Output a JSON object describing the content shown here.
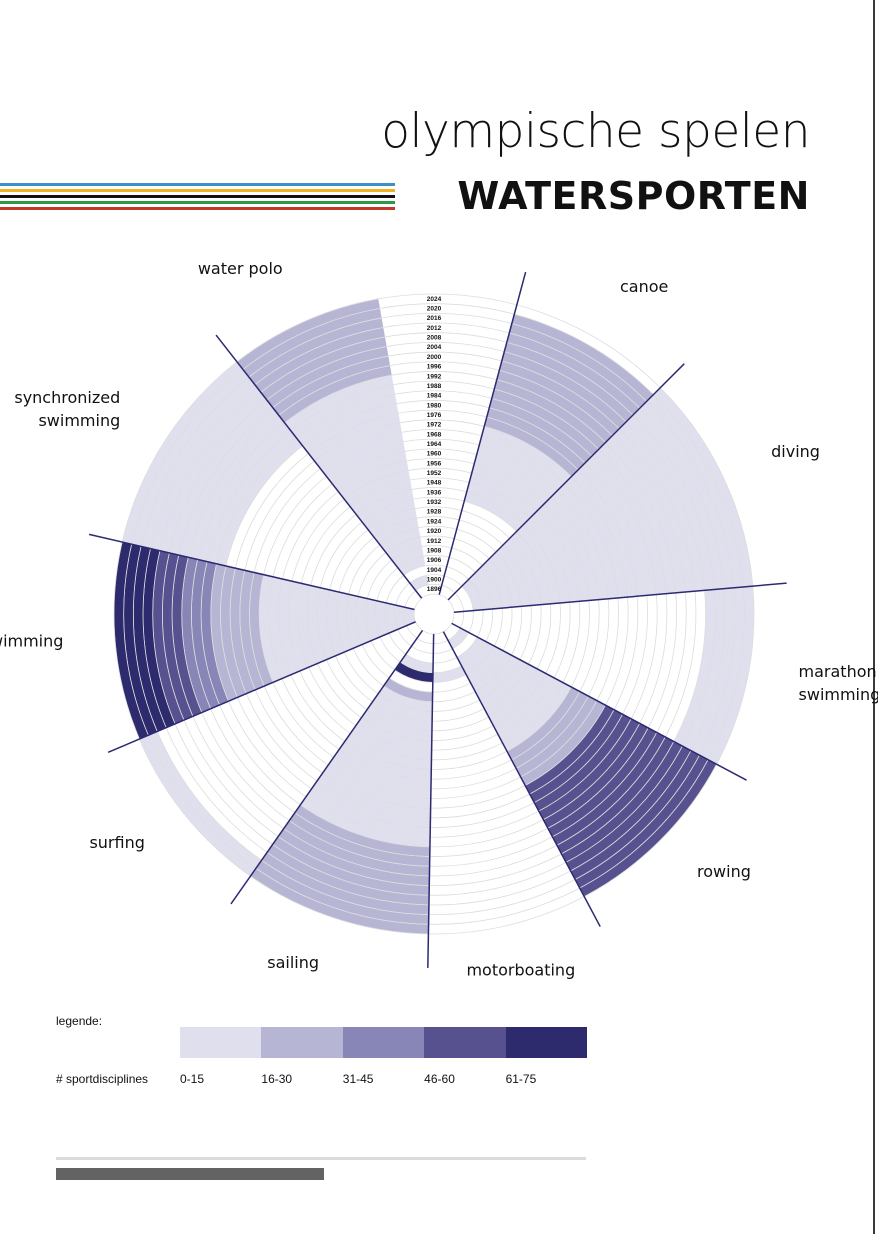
{
  "page": {
    "title": "olympische spelen",
    "subtitle": "WATERSPORTEN"
  },
  "ring_colors": [
    {
      "name": "blue",
      "color": "#3b8fcb"
    },
    {
      "name": "yellow",
      "color": "#f0b323"
    },
    {
      "name": "black",
      "color": "#111111"
    },
    {
      "name": "green",
      "color": "#2e9a45"
    },
    {
      "name": "red",
      "color": "#c0392b"
    }
  ],
  "legend": {
    "title": "legende:",
    "row_label": "# sportdisciplines",
    "bins": [
      {
        "label": "0-15",
        "color": "#dfdfee"
      },
      {
        "label": "16-30",
        "color": "#b7b5d4"
      },
      {
        "label": "31-45",
        "color": "#8885b7"
      },
      {
        "label": "46-60",
        "color": "#57528f"
      },
      {
        "label": "61-75",
        "color": "#2d2a6e"
      }
    ]
  },
  "chart_data": {
    "type": "radial-heatmap",
    "years": [
      "1896",
      "1900",
      "1904",
      "1906",
      "1908",
      "1912",
      "1920",
      "1924",
      "1928",
      "1932",
      "1936",
      "1948",
      "1952",
      "1956",
      "1960",
      "1964",
      "1968",
      "1972",
      "1976",
      "1980",
      "1984",
      "1988",
      "1992",
      "1996",
      "2000",
      "2004",
      "2008",
      "2012",
      "2016",
      "2020",
      "2024"
    ],
    "level_bins": [
      "0-15",
      "16-30",
      "31-45",
      "46-60",
      "61-75"
    ],
    "sports": [
      {
        "label": "canoe",
        "start_angle": 15,
        "end_angle": 45,
        "levels": [
          null,
          null,
          null,
          null,
          null,
          null,
          null,
          null,
          null,
          null,
          0,
          0,
          0,
          0,
          0,
          0,
          0,
          0,
          1,
          1,
          1,
          1,
          1,
          1,
          1,
          1,
          1,
          1,
          1,
          1,
          null
        ]
      },
      {
        "label": "diving",
        "start_angle": 45,
        "end_angle": 85,
        "levels": [
          null,
          null,
          0,
          0,
          0,
          0,
          0,
          0,
          0,
          0,
          0,
          0,
          0,
          0,
          0,
          0,
          0,
          0,
          0,
          0,
          0,
          0,
          0,
          0,
          0,
          0,
          0,
          0,
          0,
          0,
          0
        ]
      },
      {
        "label": "marathon\nswimming",
        "start_angle": 85,
        "end_angle": 118,
        "levels": [
          null,
          null,
          null,
          null,
          null,
          null,
          null,
          null,
          null,
          null,
          null,
          null,
          null,
          null,
          null,
          null,
          null,
          null,
          null,
          null,
          null,
          null,
          null,
          null,
          null,
          null,
          0,
          0,
          0,
          0,
          0
        ]
      },
      {
        "label": "rowing",
        "start_angle": 118,
        "end_angle": 152,
        "levels": [
          null,
          0,
          null,
          0,
          0,
          0,
          0,
          0,
          0,
          0,
          0,
          0,
          0,
          0,
          1,
          1,
          1,
          1,
          3,
          3,
          3,
          3,
          3,
          3,
          3,
          3,
          3,
          3,
          3,
          3,
          3
        ]
      },
      {
        "label": "motorboating",
        "start_angle": 152,
        "end_angle": 181,
        "levels": [
          null,
          null,
          null,
          null,
          0,
          null,
          null,
          null,
          null,
          null,
          null,
          null,
          null,
          null,
          null,
          null,
          null,
          null,
          null,
          null,
          null,
          null,
          null,
          null,
          null,
          null,
          null,
          null,
          null,
          null,
          null
        ]
      },
      {
        "label": "sailing",
        "start_angle": 181,
        "end_angle": 215,
        "levels": [
          null,
          null,
          null,
          0,
          4,
          null,
          1,
          0,
          0,
          0,
          0,
          0,
          0,
          0,
          0,
          0,
          0,
          0,
          0,
          0,
          0,
          0,
          1,
          1,
          1,
          1,
          1,
          1,
          1,
          1,
          1
        ]
      },
      {
        "label": "surfing",
        "start_angle": 215,
        "end_angle": 247,
        "levels": [
          null,
          null,
          null,
          null,
          null,
          null,
          null,
          null,
          null,
          null,
          null,
          null,
          null,
          null,
          null,
          null,
          null,
          null,
          null,
          null,
          null,
          null,
          null,
          null,
          null,
          null,
          null,
          null,
          null,
          0,
          0
        ]
      },
      {
        "label": "swimming",
        "start_angle": 247,
        "end_angle": 283,
        "levels": [
          0,
          0,
          0,
          0,
          0,
          0,
          0,
          0,
          0,
          0,
          0,
          0,
          0,
          0,
          0,
          0,
          1,
          1,
          1,
          1,
          1,
          2,
          2,
          2,
          3,
          3,
          3,
          4,
          4,
          4,
          4
        ]
      },
      {
        "label": "synchronized\nswimming",
        "start_angle": 283,
        "end_angle": 322,
        "levels": [
          null,
          null,
          null,
          null,
          null,
          null,
          null,
          null,
          null,
          null,
          null,
          null,
          null,
          null,
          null,
          null,
          null,
          null,
          null,
          null,
          0,
          0,
          0,
          0,
          0,
          0,
          0,
          0,
          0,
          0,
          0
        ]
      },
      {
        "label": "water polo",
        "start_angle": 322,
        "end_angle": 350,
        "levels": [
          null,
          0,
          null,
          0,
          0,
          0,
          0,
          0,
          0,
          0,
          0,
          0,
          0,
          0,
          0,
          0,
          0,
          0,
          0,
          0,
          0,
          0,
          0,
          1,
          1,
          1,
          1,
          1,
          1,
          1,
          1
        ]
      }
    ]
  }
}
